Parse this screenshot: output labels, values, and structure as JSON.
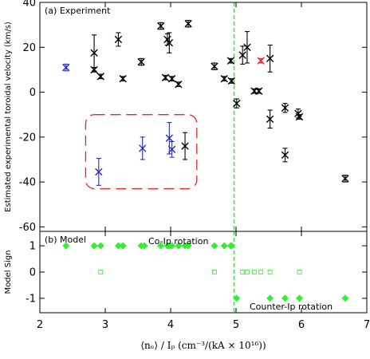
{
  "chart_data": [
    {
      "type": "scatter",
      "panel_label": "(a) Experiment",
      "ylabel": "Estimated experimental toroidal velocity (km/s)",
      "xlim": [
        2,
        7
      ],
      "ylim": [
        -62,
        40
      ],
      "yticks": [
        -60,
        -40,
        -20,
        0,
        20,
        40
      ],
      "colors": {
        "black": "#000000",
        "blue": "#2a2acd",
        "red": "#e8242e",
        "green": "#33ee33",
        "box": "#e8242e"
      },
      "vline_x": 4.97,
      "vline_color": "#33ee33",
      "highlight_box": {
        "x0": 2.7,
        "x1": 4.4,
        "y0": -43,
        "y1": -10,
        "color": "#e8242e"
      },
      "series": [
        {
          "color": "black",
          "points": [
            {
              "x": 2.83,
              "y": 17.5,
              "err": 8
            },
            {
              "x": 2.83,
              "y": 10,
              "err": 1
            },
            {
              "x": 2.93,
              "y": 7,
              "err": 1
            },
            {
              "x": 3.2,
              "y": 23.5,
              "err": 3
            },
            {
              "x": 3.27,
              "y": 6,
              "err": 1
            },
            {
              "x": 3.55,
              "y": 13.5,
              "err": 1.5
            },
            {
              "x": 3.85,
              "y": 29.5,
              "err": 1.5
            },
            {
              "x": 3.92,
              "y": 6.5,
              "err": 1
            },
            {
              "x": 3.95,
              "y": 23.5,
              "err": 2.5
            },
            {
              "x": 3.98,
              "y": 22,
              "err": 4.5
            },
            {
              "x": 4.02,
              "y": 6,
              "err": 1
            },
            {
              "x": 4.12,
              "y": 3.5,
              "err": 1
            },
            {
              "x": 4.27,
              "y": 30.5,
              "err": 1.5
            },
            {
              "x": 4.67,
              "y": 11.5,
              "err": 1.5
            },
            {
              "x": 4.82,
              "y": 6,
              "err": 1
            },
            {
              "x": 4.92,
              "y": 14,
              "err": 1
            },
            {
              "x": 4.93,
              "y": 5,
              "err": 1
            },
            {
              "x": 5.01,
              "y": -5,
              "err": 2
            },
            {
              "x": 5.1,
              "y": 16.5,
              "err": 4
            },
            {
              "x": 5.17,
              "y": 20,
              "err": 7
            },
            {
              "x": 5.28,
              "y": 0.5,
              "err": 1
            },
            {
              "x": 5.35,
              "y": 0.5,
              "err": 1
            },
            {
              "x": 5.52,
              "y": 15,
              "err": 6
            },
            {
              "x": 5.52,
              "y": -12,
              "err": 4
            },
            {
              "x": 5.75,
              "y": -7,
              "err": 2
            },
            {
              "x": 5.75,
              "y": -28,
              "err": 3
            },
            {
              "x": 5.95,
              "y": -9.5,
              "err": 2
            },
            {
              "x": 5.97,
              "y": -11,
              "err": 1
            },
            {
              "x": 6.67,
              "y": -38.5,
              "err": 1.5
            },
            {
              "x": 4.22,
              "y": -24,
              "err": 6
            }
          ]
        },
        {
          "color": "blue",
          "points": [
            {
              "x": 2.4,
              "y": 11,
              "err": 1.5
            },
            {
              "x": 2.9,
              "y": -35.5,
              "err": 6
            },
            {
              "x": 3.57,
              "y": -25,
              "err": 5
            },
            {
              "x": 3.98,
              "y": -20.5,
              "err": 7
            },
            {
              "x": 4.02,
              "y": -25.5,
              "err": 3.5
            }
          ]
        },
        {
          "color": "red",
          "points": [
            {
              "x": 5.38,
              "y": 14,
              "err": 1
            }
          ]
        }
      ]
    },
    {
      "type": "scatter",
      "panel_label": "(b) Model",
      "ylabel": "Model Sign",
      "xlabel": "⟨nₑ⟩ / Iₚ  (cm⁻³/(kA × 10¹⁶))",
      "xlim": [
        2,
        7
      ],
      "ylim": [
        -1.55,
        1.55
      ],
      "yticks": [
        -1,
        0,
        1
      ],
      "xticks": [
        2,
        3,
        4,
        5,
        6,
        7
      ],
      "annotations": [
        "Co-Ip rotation",
        "Counter-Ip rotation"
      ],
      "color": "#33ee33",
      "filled_points": [
        {
          "x": 2.4,
          "y": 1
        },
        {
          "x": 2.83,
          "y": 1
        },
        {
          "x": 2.93,
          "y": 1
        },
        {
          "x": 3.2,
          "y": 1
        },
        {
          "x": 3.27,
          "y": 1
        },
        {
          "x": 3.55,
          "y": 1
        },
        {
          "x": 3.6,
          "y": 1
        },
        {
          "x": 3.85,
          "y": 1
        },
        {
          "x": 3.95,
          "y": 1
        },
        {
          "x": 3.98,
          "y": 1
        },
        {
          "x": 4.02,
          "y": 1
        },
        {
          "x": 4.12,
          "y": 1
        },
        {
          "x": 4.22,
          "y": 1
        },
        {
          "x": 4.27,
          "y": 1
        },
        {
          "x": 4.67,
          "y": 1
        },
        {
          "x": 4.82,
          "y": 1
        },
        {
          "x": 4.92,
          "y": 1
        },
        {
          "x": 4.93,
          "y": 1
        },
        {
          "x": 5.01,
          "y": -1
        },
        {
          "x": 5.52,
          "y": -1
        },
        {
          "x": 5.75,
          "y": -1
        },
        {
          "x": 5.97,
          "y": -1
        },
        {
          "x": 6.67,
          "y": -1
        }
      ],
      "open_points": [
        {
          "x": 2.93,
          "y": 0
        },
        {
          "x": 4.67,
          "y": 0
        },
        {
          "x": 5.1,
          "y": 0
        },
        {
          "x": 5.17,
          "y": 0
        },
        {
          "x": 5.28,
          "y": 0
        },
        {
          "x": 5.38,
          "y": 0
        },
        {
          "x": 5.52,
          "y": 0
        },
        {
          "x": 5.97,
          "y": 0
        }
      ]
    }
  ]
}
